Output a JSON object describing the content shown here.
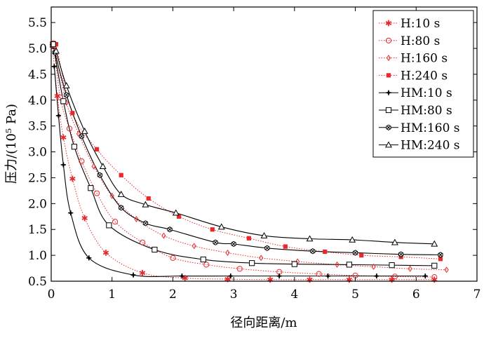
{
  "chart_data": {
    "type": "line",
    "xlabel": "径向距离/m",
    "ylabel": "压力/(10⁵ Pa)",
    "xlim": [
      0,
      7
    ],
    "ylim": [
      0.5,
      5.8
    ],
    "xticks": [
      0,
      1,
      2,
      3,
      4,
      5,
      6,
      7
    ],
    "yticks": [
      0.5,
      1.0,
      1.5,
      2.0,
      2.5,
      3.0,
      3.5,
      4.0,
      4.5,
      5.0,
      5.5
    ],
    "ytick_labels": [
      "0.5",
      "1.0",
      "1.5",
      "2.0",
      "2.5",
      "3.0",
      "3.5",
      "4.0",
      "4.5",
      "5.0",
      "5.5"
    ],
    "grid": false,
    "legend_position": "top-right",
    "series": [
      {
        "name": "H:10 s",
        "marker": "star",
        "color": "#e8282b",
        "line": "dotted",
        "x": [
          0.02,
          0.1,
          0.2,
          0.35,
          0.55,
          0.9,
          1.5,
          2.2,
          2.9,
          3.6,
          4.25,
          4.9,
          5.6,
          6.3
        ],
        "y": [
          5.05,
          4.08,
          3.28,
          2.48,
          1.72,
          1.05,
          0.66,
          0.56,
          0.54,
          0.53,
          0.53,
          0.53,
          0.53,
          0.53
        ]
      },
      {
        "name": "H:80 s",
        "marker": "circle",
        "color": "#e8282b",
        "line": "dotted",
        "x": [
          0.04,
          0.15,
          0.3,
          0.5,
          0.75,
          1.05,
          1.5,
          2.0,
          2.55,
          3.1,
          3.75,
          4.4,
          5.0,
          5.65,
          6.3
        ],
        "y": [
          5.1,
          4.05,
          3.45,
          2.82,
          2.2,
          1.65,
          1.25,
          0.95,
          0.82,
          0.74,
          0.68,
          0.64,
          0.61,
          0.59,
          0.58
        ]
      },
      {
        "name": "H:160 s",
        "marker": "diamond",
        "color": "#e8282b",
        "line": "dotted",
        "x": [
          0.06,
          0.25,
          0.45,
          0.7,
          1.0,
          1.4,
          1.85,
          2.35,
          2.9,
          3.45,
          4.05,
          4.7,
          5.3,
          5.9,
          6.5
        ],
        "y": [
          5.0,
          3.95,
          3.35,
          2.72,
          2.15,
          1.7,
          1.38,
          1.18,
          1.05,
          0.95,
          0.88,
          0.82,
          0.78,
          0.74,
          0.72
        ]
      },
      {
        "name": "H:240 s",
        "marker": "square-filled",
        "color": "#e8282b",
        "line": "dotted",
        "x": [
          0.08,
          0.35,
          0.75,
          1.15,
          1.6,
          2.1,
          2.65,
          3.25,
          3.85,
          4.5,
          5.1,
          5.75,
          6.4
        ],
        "y": [
          5.08,
          3.75,
          3.05,
          2.55,
          2.1,
          1.75,
          1.5,
          1.33,
          1.17,
          1.07,
          1.0,
          0.97,
          0.93
        ]
      },
      {
        "name": "HM:10 s",
        "marker": "plus",
        "color": "#000000",
        "line": "solid",
        "x": [
          0.05,
          0.12,
          0.2,
          0.32,
          0.62,
          1.35,
          2.15,
          2.95,
          3.75,
          4.55,
          5.35,
          6.15
        ],
        "y": [
          4.65,
          3.7,
          2.75,
          1.82,
          0.95,
          0.62,
          0.6,
          0.6,
          0.6,
          0.6,
          0.6,
          0.6
        ]
      },
      {
        "name": "HM:80 s",
        "marker": "square",
        "color": "#000000",
        "line": "solid",
        "x": [
          0.03,
          0.2,
          0.38,
          0.65,
          0.95,
          1.7,
          2.5,
          3.3,
          4.0,
          4.9,
          5.6,
          6.3
        ],
        "y": [
          5.08,
          3.98,
          3.1,
          2.3,
          1.58,
          1.11,
          0.92,
          0.85,
          0.83,
          0.82,
          0.81,
          0.8
        ]
      },
      {
        "name": "HM:160 s",
        "marker": "hex",
        "color": "#000000",
        "line": "solid",
        "x": [
          0.06,
          0.25,
          0.5,
          0.8,
          1.15,
          1.55,
          1.95,
          2.7,
          3.0,
          3.55,
          4.3,
          5.0,
          5.75,
          6.4
        ],
        "y": [
          4.92,
          4.1,
          3.3,
          2.55,
          1.92,
          1.62,
          1.5,
          1.25,
          1.22,
          1.14,
          1.08,
          1.05,
          1.02,
          1.01
        ]
      },
      {
        "name": "HM:240 s",
        "marker": "triangle",
        "color": "#000000",
        "line": "solid",
        "x": [
          0.08,
          0.25,
          0.55,
          0.85,
          1.15,
          1.55,
          2.05,
          2.8,
          3.5,
          4.25,
          4.95,
          5.65,
          6.3
        ],
        "y": [
          4.95,
          4.28,
          3.4,
          2.72,
          2.18,
          1.98,
          1.82,
          1.55,
          1.38,
          1.32,
          1.3,
          1.25,
          1.22
        ]
      }
    ]
  }
}
